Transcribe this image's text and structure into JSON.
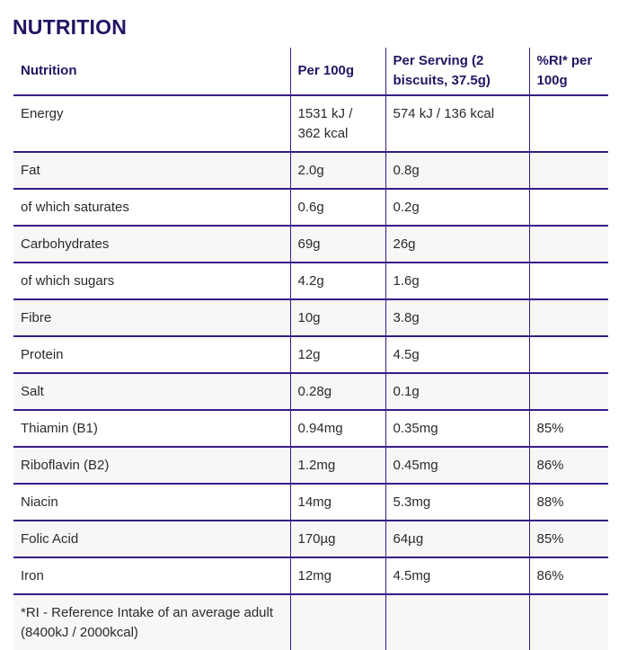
{
  "page_title": "NUTRITION",
  "colors": {
    "line_purple": "#371c87",
    "heading_ink": "#251463",
    "body_ink": "#2b2b2b",
    "row_stripe": "#f7f7f7"
  },
  "table": {
    "headers": [
      "Nutrition",
      "Per 100g",
      "Per Serving (2 biscuits, 37.5g)",
      "%RI* per 100g"
    ],
    "rows": [
      {
        "label": "Energy",
        "per_100g": "1531 kJ / 362 kcal",
        "per_serving": "574 kJ / 136 kcal",
        "ri": ""
      },
      {
        "label": "Fat",
        "per_100g": "2.0g",
        "per_serving": "0.8g",
        "ri": ""
      },
      {
        "label": "of which saturates",
        "per_100g": "0.6g",
        "per_serving": "0.2g",
        "ri": ""
      },
      {
        "label": "Carbohydrates",
        "per_100g": "69g",
        "per_serving": "26g",
        "ri": ""
      },
      {
        "label": "of which sugars",
        "per_100g": "4.2g",
        "per_serving": "1.6g",
        "ri": ""
      },
      {
        "label": "Fibre",
        "per_100g": "10g",
        "per_serving": "3.8g",
        "ri": ""
      },
      {
        "label": "Protein",
        "per_100g": "12g",
        "per_serving": "4.5g",
        "ri": ""
      },
      {
        "label": "Salt",
        "per_100g": "0.28g",
        "per_serving": "0.1g",
        "ri": ""
      },
      {
        "label": "Thiamin (B1)",
        "per_100g": "0.94mg",
        "per_serving": "0.35mg",
        "ri": "85%"
      },
      {
        "label": "Riboflavin (B2)",
        "per_100g": "1.2mg",
        "per_serving": "0.45mg",
        "ri": "86%"
      },
      {
        "label": "Niacin",
        "per_100g": "14mg",
        "per_serving": "5.3mg",
        "ri": "88%"
      },
      {
        "label": "Folic Acid",
        "per_100g": "170µg",
        "per_serving": "64µg",
        "ri": "85%"
      },
      {
        "label": "Iron",
        "per_100g": "12mg",
        "per_serving": "4.5mg",
        "ri": "86%"
      }
    ],
    "footnote": "*RI - Reference Intake of an average adult (8400kJ / 2000kcal)"
  }
}
